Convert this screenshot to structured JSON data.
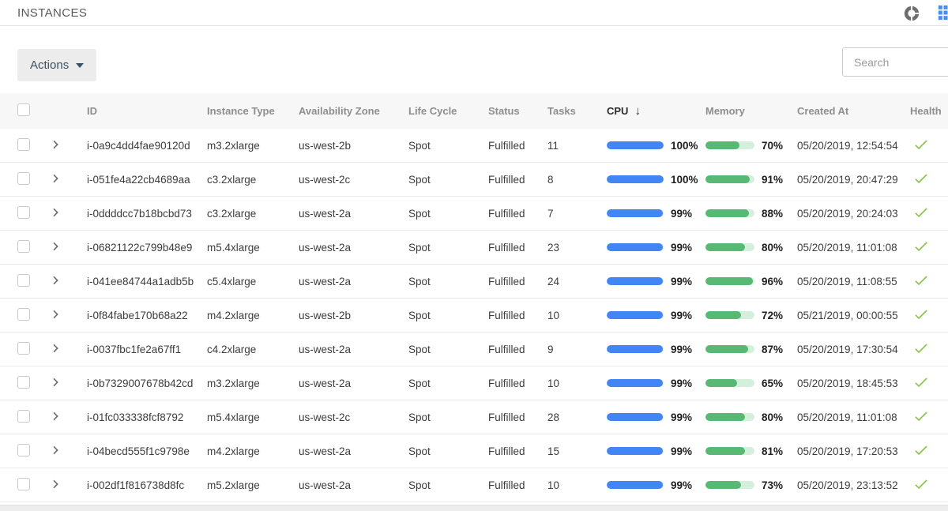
{
  "page": {
    "title": "INSTANCES"
  },
  "toolbar": {
    "actions_label": "Actions",
    "search_placeholder": "Search"
  },
  "colors": {
    "cpu_bar": "#4285f4",
    "memory_bar": "#57b973",
    "memory_track": "#d5efdd",
    "health_check": "#8bc34a",
    "grid_icon": "#4b8bf4"
  },
  "table": {
    "columns": [
      "ID",
      "Instance Type",
      "Availability Zone",
      "Life Cycle",
      "Status",
      "Tasks",
      "CPU",
      "Memory",
      "Created At",
      "Health"
    ],
    "sort": {
      "column": "CPU",
      "direction": "desc",
      "arrow": "↓"
    },
    "rows": [
      {
        "id": "i-0a9c4dd4fae90120d",
        "instance_type": "m3.2xlarge",
        "availability_zone": "us-west-2b",
        "life_cycle": "Spot",
        "status": "Fulfilled",
        "tasks": "11",
        "cpu": "100%",
        "cpu_pct": 100,
        "memory": "70%",
        "memory_pct": 70,
        "created_at": "05/20/2019, 12:54:54",
        "health": "healthy"
      },
      {
        "id": "i-051fe4a22cb4689aa",
        "instance_type": "c3.2xlarge",
        "availability_zone": "us-west-2c",
        "life_cycle": "Spot",
        "status": "Fulfilled",
        "tasks": "8",
        "cpu": "100%",
        "cpu_pct": 100,
        "memory": "91%",
        "memory_pct": 91,
        "created_at": "05/20/2019, 20:47:29",
        "health": "healthy"
      },
      {
        "id": "i-0ddddcc7b18bcbd73",
        "instance_type": "c3.2xlarge",
        "availability_zone": "us-west-2a",
        "life_cycle": "Spot",
        "status": "Fulfilled",
        "tasks": "7",
        "cpu": "99%",
        "cpu_pct": 99,
        "memory": "88%",
        "memory_pct": 88,
        "created_at": "05/20/2019, 20:24:03",
        "health": "healthy"
      },
      {
        "id": "i-06821122c799b48e9",
        "instance_type": "m5.4xlarge",
        "availability_zone": "us-west-2a",
        "life_cycle": "Spot",
        "status": "Fulfilled",
        "tasks": "23",
        "cpu": "99%",
        "cpu_pct": 99,
        "memory": "80%",
        "memory_pct": 80,
        "created_at": "05/20/2019, 11:01:08",
        "health": "healthy"
      },
      {
        "id": "i-041ee84744a1adb5b",
        "instance_type": "c5.4xlarge",
        "availability_zone": "us-west-2a",
        "life_cycle": "Spot",
        "status": "Fulfilled",
        "tasks": "24",
        "cpu": "99%",
        "cpu_pct": 99,
        "memory": "96%",
        "memory_pct": 96,
        "created_at": "05/20/2019, 11:08:55",
        "health": "healthy"
      },
      {
        "id": "i-0f84fabe170b68a22",
        "instance_type": "m4.2xlarge",
        "availability_zone": "us-west-2b",
        "life_cycle": "Spot",
        "status": "Fulfilled",
        "tasks": "10",
        "cpu": "99%",
        "cpu_pct": 99,
        "memory": "72%",
        "memory_pct": 72,
        "created_at": "05/21/2019, 00:00:55",
        "health": "healthy"
      },
      {
        "id": "i-0037fbc1fe2a67ff1",
        "instance_type": "c4.2xlarge",
        "availability_zone": "us-west-2a",
        "life_cycle": "Spot",
        "status": "Fulfilled",
        "tasks": "9",
        "cpu": "99%",
        "cpu_pct": 99,
        "memory": "87%",
        "memory_pct": 87,
        "created_at": "05/20/2019, 17:30:54",
        "health": "healthy"
      },
      {
        "id": "i-0b7329007678b42cd",
        "instance_type": "m3.2xlarge",
        "availability_zone": "us-west-2a",
        "life_cycle": "Spot",
        "status": "Fulfilled",
        "tasks": "10",
        "cpu": "99%",
        "cpu_pct": 99,
        "memory": "65%",
        "memory_pct": 65,
        "created_at": "05/20/2019, 18:45:53",
        "health": "healthy"
      },
      {
        "id": "i-01fc033338fcf8792",
        "instance_type": "m5.4xlarge",
        "availability_zone": "us-west-2c",
        "life_cycle": "Spot",
        "status": "Fulfilled",
        "tasks": "28",
        "cpu": "99%",
        "cpu_pct": 99,
        "memory": "80%",
        "memory_pct": 80,
        "created_at": "05/20/2019, 11:01:08",
        "health": "healthy"
      },
      {
        "id": "i-04becd555f1c9798e",
        "instance_type": "m4.2xlarge",
        "availability_zone": "us-west-2a",
        "life_cycle": "Spot",
        "status": "Fulfilled",
        "tasks": "15",
        "cpu": "99%",
        "cpu_pct": 99,
        "memory": "81%",
        "memory_pct": 81,
        "created_at": "05/20/2019, 17:20:53",
        "health": "healthy"
      },
      {
        "id": "i-002df1f816738d8fc",
        "instance_type": "m5.2xlarge",
        "availability_zone": "us-west-2a",
        "life_cycle": "Spot",
        "status": "Fulfilled",
        "tasks": "10",
        "cpu": "99%",
        "cpu_pct": 99,
        "memory": "73%",
        "memory_pct": 73,
        "created_at": "05/20/2019, 23:13:52",
        "health": "healthy"
      }
    ]
  }
}
